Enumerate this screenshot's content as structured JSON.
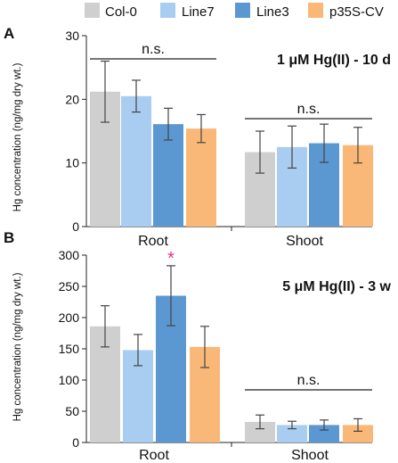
{
  "legend": {
    "items": [
      {
        "label": "Col-0",
        "color": "#cfcfcf"
      },
      {
        "label": "Line7",
        "color": "#a9cdf0"
      },
      {
        "label": "Line3",
        "color": "#5b98d1"
      },
      {
        "label": "p35S-CV",
        "color": "#f9b877"
      }
    ]
  },
  "chart_data": [
    {
      "type": "bar",
      "panel_label": "A",
      "annotation": "1 μM Hg(II) - 10 d",
      "ylabel": "Hg concentration (ng/mg dry wt.)",
      "xlabel": "",
      "ylim": [
        0,
        30
      ],
      "yticks": [
        0,
        10,
        20,
        30
      ],
      "categories": [
        "Root",
        "Shoot"
      ],
      "series": [
        {
          "name": "Col-0",
          "values": [
            21.2,
            11.7
          ],
          "errors": [
            4.8,
            3.3
          ]
        },
        {
          "name": "Line7",
          "values": [
            20.5,
            12.5
          ],
          "errors": [
            2.5,
            3.3
          ]
        },
        {
          "name": "Line3",
          "values": [
            16.1,
            13.1
          ],
          "errors": [
            2.5,
            3.0
          ]
        },
        {
          "name": "p35S-CV",
          "values": [
            15.4,
            12.8
          ],
          "errors": [
            2.2,
            2.8
          ]
        }
      ],
      "significance": [
        {
          "category": "Root",
          "label": "n.s."
        },
        {
          "category": "Shoot",
          "label": "n.s."
        }
      ],
      "grid": false
    },
    {
      "type": "bar",
      "panel_label": "B",
      "annotation": "5 μM Hg(II) - 3 w",
      "ylabel": "Hg concentration (ng/mg dry wt.)",
      "xlabel": "",
      "ylim": [
        0,
        300
      ],
      "yticks": [
        0,
        50,
        100,
        150,
        200,
        250,
        300
      ],
      "categories": [
        "Root",
        "Shoot"
      ],
      "series": [
        {
          "name": "Col-0",
          "values": [
            186,
            33
          ],
          "errors": [
            33,
            11
          ]
        },
        {
          "name": "Line7",
          "values": [
            148,
            28
          ],
          "errors": [
            25,
            6
          ]
        },
        {
          "name": "Line3",
          "values": [
            235,
            28
          ],
          "errors": [
            48,
            8
          ]
        },
        {
          "name": "p35S-CV",
          "values": [
            153,
            28
          ],
          "errors": [
            33,
            10
          ]
        }
      ],
      "significance": [
        {
          "category": "Shoot",
          "label": "n.s."
        }
      ],
      "stars": [
        {
          "category": "Root",
          "series": "Line3",
          "label": "*",
          "color": "#e0338a"
        }
      ],
      "grid": false
    }
  ]
}
